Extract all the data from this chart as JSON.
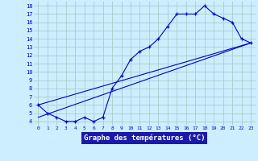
{
  "xlabel": "Graphe des températures (°C)",
  "hours": [
    0,
    1,
    2,
    3,
    4,
    5,
    6,
    7,
    8,
    9,
    10,
    11,
    12,
    13,
    14,
    15,
    16,
    17,
    18,
    19,
    20,
    21,
    22,
    23
  ],
  "temp": [
    6.0,
    5.0,
    4.5,
    4.0,
    4.0,
    4.5,
    4.0,
    4.5,
    8.0,
    9.5,
    11.5,
    12.5,
    13.0,
    14.0,
    15.5,
    17.0,
    17.0,
    17.0,
    18.0,
    17.0,
    16.5,
    16.0,
    14.0,
    13.5
  ],
  "xlim": [
    -0.5,
    23.5
  ],
  "ylim": [
    3.5,
    18.5
  ],
  "yticks": [
    4,
    5,
    6,
    7,
    8,
    9,
    10,
    11,
    12,
    13,
    14,
    15,
    16,
    17,
    18
  ],
  "xticks": [
    0,
    1,
    2,
    3,
    4,
    5,
    6,
    7,
    8,
    9,
    10,
    11,
    12,
    13,
    14,
    15,
    16,
    17,
    18,
    19,
    20,
    21,
    22,
    23
  ],
  "line_color": "#0000cc",
  "bg_color": "#cceeff",
  "grid_color": "#aacccc",
  "label_bg": "#1a1aaa",
  "label_fg": "#ffffff",
  "trend1": [
    0,
    6.0,
    23,
    13.5
  ],
  "trend2": [
    0,
    4.5,
    23,
    13.5
  ]
}
